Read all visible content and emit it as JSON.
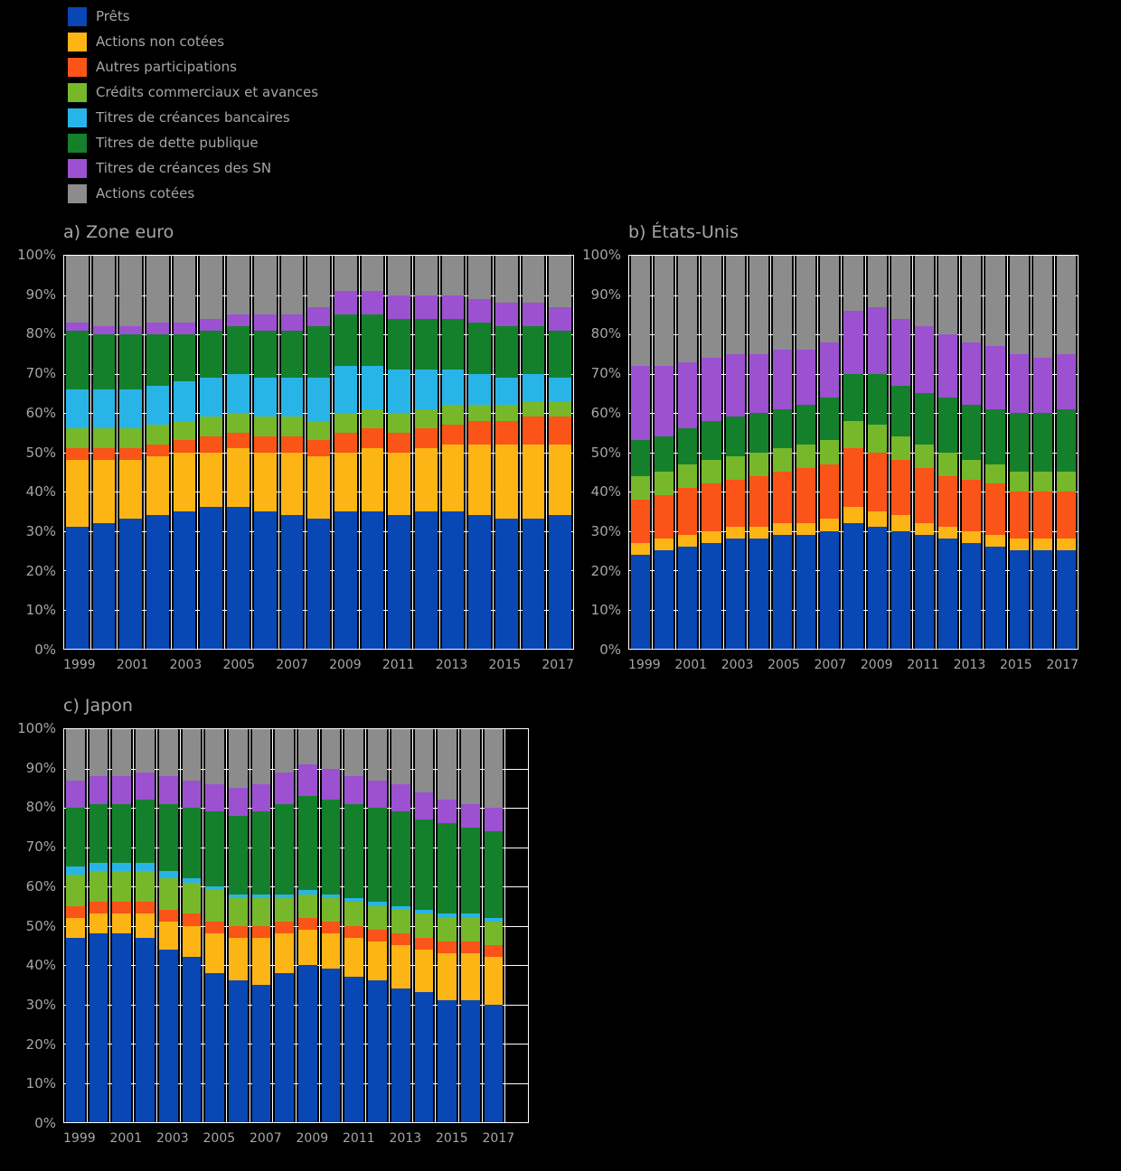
{
  "page": {
    "background": "#000000",
    "text_color": "#a6a6a6",
    "grid_color": "#ffffff"
  },
  "legend": {
    "items": [
      {
        "label": "Prêts",
        "color": "#0847b4"
      },
      {
        "label": "Actions non cotées",
        "color": "#fdb515"
      },
      {
        "label": "Autres participations",
        "color": "#fa5418"
      },
      {
        "label": "Crédits commerciaux et avances",
        "color": "#76b82a"
      },
      {
        "label": "Titres de créances bancaires",
        "color": "#29b4e8"
      },
      {
        "label": "Titres de dette publique",
        "color": "#15802b"
      },
      {
        "label": "Titres de créances des SN",
        "color": "#9b51d0"
      },
      {
        "label": "Actions cotées",
        "color": "#8c8c8c"
      }
    ]
  },
  "chart_data": [
    {
      "type": "bar",
      "stacked": true,
      "percent": true,
      "title": "a) Zone euro",
      "ylim": [
        0,
        100
      ],
      "grid": true,
      "y_ticks": [
        "100%",
        "90%",
        "80%",
        "70%",
        "60%",
        "50%",
        "40%",
        "30%",
        "20%",
        "10%",
        "0%"
      ],
      "categories": [
        "1999",
        "2000",
        "2001",
        "2002",
        "2003",
        "2004",
        "2005",
        "2006",
        "2007",
        "2008",
        "2009",
        "2010",
        "2011",
        "2012",
        "2013",
        "2014",
        "2015",
        "2016",
        "2017"
      ],
      "x_tick_labels": [
        "1999",
        "2001",
        "2003",
        "2005",
        "2007",
        "2009",
        "2011",
        "2013",
        "2015",
        "2017"
      ],
      "trailing_empty_slots": 0,
      "series": [
        {
          "name": "Prêts",
          "color": "#0847b4",
          "values": [
            31,
            32,
            33,
            34,
            35,
            36,
            36,
            35,
            34,
            33,
            35,
            35,
            34,
            35,
            35,
            34,
            33,
            33,
            34
          ]
        },
        {
          "name": "Actions non cotées",
          "color": "#fdb515",
          "values": [
            17,
            16,
            15,
            15,
            15,
            14,
            15,
            15,
            16,
            16,
            15,
            16,
            16,
            16,
            17,
            18,
            19,
            19,
            18
          ]
        },
        {
          "name": "Autres participations",
          "color": "#fa5418",
          "values": [
            3,
            3,
            3,
            3,
            3,
            4,
            4,
            4,
            4,
            4,
            5,
            5,
            5,
            5,
            5,
            6,
            6,
            7,
            7
          ]
        },
        {
          "name": "Crédits commerciaux et avances",
          "color": "#76b82a",
          "values": [
            5,
            5,
            5,
            5,
            5,
            5,
            5,
            5,
            5,
            5,
            5,
            5,
            5,
            5,
            5,
            4,
            4,
            4,
            4
          ]
        },
        {
          "name": "Titres de créances bancaires",
          "color": "#29b4e8",
          "values": [
            10,
            10,
            10,
            10,
            10,
            10,
            10,
            10,
            10,
            11,
            12,
            11,
            11,
            10,
            9,
            8,
            7,
            7,
            6
          ]
        },
        {
          "name": "Titres de dette publique",
          "color": "#15802b",
          "values": [
            15,
            14,
            14,
            13,
            12,
            12,
            12,
            12,
            12,
            13,
            13,
            13,
            13,
            13,
            13,
            13,
            13,
            12,
            12
          ]
        },
        {
          "name": "Titres de créances des SN",
          "color": "#9b51d0",
          "values": [
            2,
            2,
            2,
            3,
            3,
            3,
            3,
            4,
            4,
            5,
            6,
            6,
            6,
            6,
            6,
            6,
            6,
            6,
            6
          ]
        },
        {
          "name": "Actions cotées",
          "color": "#8c8c8c",
          "values": [
            17,
            18,
            18,
            17,
            17,
            16,
            15,
            15,
            15,
            13,
            9,
            9,
            10,
            10,
            10,
            11,
            12,
            12,
            13
          ]
        }
      ]
    },
    {
      "type": "bar",
      "stacked": true,
      "percent": true,
      "title": "b) États-Unis",
      "ylim": [
        0,
        100
      ],
      "grid": true,
      "y_ticks": [
        "100%",
        "90%",
        "80%",
        "70%",
        "60%",
        "50%",
        "40%",
        "30%",
        "20%",
        "10%",
        "0%"
      ],
      "categories": [
        "1999",
        "2000",
        "2001",
        "2002",
        "2003",
        "2004",
        "2005",
        "2006",
        "2007",
        "2008",
        "2009",
        "2010",
        "2011",
        "2012",
        "2013",
        "2014",
        "2015",
        "2016",
        "2017"
      ],
      "x_tick_labels": [
        "1999",
        "2001",
        "2003",
        "2005",
        "2007",
        "2009",
        "2011",
        "2013",
        "2015",
        "2017"
      ],
      "trailing_empty_slots": 0,
      "series": [
        {
          "name": "Prêts",
          "color": "#0847b4",
          "values": [
            24,
            25,
            26,
            27,
            28,
            28,
            29,
            29,
            30,
            32,
            31,
            30,
            29,
            28,
            27,
            26,
            25,
            25,
            25
          ]
        },
        {
          "name": "Actions non cotées",
          "color": "#fdb515",
          "values": [
            3,
            3,
            3,
            3,
            3,
            3,
            3,
            3,
            3,
            4,
            4,
            4,
            3,
            3,
            3,
            3,
            3,
            3,
            3
          ]
        },
        {
          "name": "Autres participations",
          "color": "#fa5418",
          "values": [
            11,
            11,
            12,
            12,
            12,
            13,
            13,
            14,
            14,
            15,
            15,
            14,
            14,
            13,
            13,
            13,
            12,
            12,
            12
          ]
        },
        {
          "name": "Crédits commerciaux et avances",
          "color": "#76b82a",
          "values": [
            6,
            6,
            6,
            6,
            6,
            6,
            6,
            6,
            6,
            7,
            7,
            6,
            6,
            6,
            5,
            5,
            5,
            5,
            5
          ]
        },
        {
          "name": "Titres de créances bancaires",
          "color": "#29b4e8",
          "values": [
            0,
            0,
            0,
            0,
            0,
            0,
            0,
            0,
            0,
            0,
            0,
            0,
            0,
            0,
            0,
            0,
            0,
            0,
            0
          ]
        },
        {
          "name": "Titres de dette publique",
          "color": "#15802b",
          "values": [
            9,
            9,
            9,
            10,
            10,
            10,
            10,
            10,
            11,
            12,
            13,
            13,
            13,
            14,
            14,
            14,
            15,
            15,
            16
          ]
        },
        {
          "name": "Titres de créances des SN",
          "color": "#9b51d0",
          "values": [
            19,
            18,
            17,
            16,
            16,
            15,
            15,
            14,
            14,
            16,
            17,
            17,
            17,
            16,
            16,
            16,
            15,
            14,
            14
          ]
        },
        {
          "name": "Actions cotées",
          "color": "#8c8c8c",
          "values": [
            28,
            28,
            27,
            26,
            25,
            25,
            24,
            24,
            22,
            14,
            13,
            16,
            18,
            20,
            22,
            23,
            25,
            26,
            25
          ]
        }
      ]
    },
    {
      "type": "bar",
      "stacked": true,
      "percent": true,
      "title": "c) Japon",
      "ylim": [
        0,
        100
      ],
      "grid": true,
      "y_ticks": [
        "100%",
        "90%",
        "80%",
        "70%",
        "60%",
        "50%",
        "40%",
        "30%",
        "20%",
        "10%",
        "0%"
      ],
      "categories": [
        "1999",
        "2000",
        "2001",
        "2002",
        "2003",
        "2004",
        "2005",
        "2006",
        "2007",
        "2008",
        "2009",
        "2010",
        "2011",
        "2012",
        "2013",
        "2014",
        "2015",
        "2016",
        "2017"
      ],
      "x_tick_labels": [
        "1999",
        "2001",
        "2003",
        "2005",
        "2007",
        "2009",
        "2011",
        "2013",
        "2015",
        "2017"
      ],
      "trailing_empty_slots": 1,
      "series": [
        {
          "name": "Prêts",
          "color": "#0847b4",
          "values": [
            47,
            48,
            48,
            47,
            44,
            42,
            38,
            36,
            35,
            38,
            40,
            39,
            37,
            36,
            34,
            33,
            31,
            31,
            30
          ]
        },
        {
          "name": "Actions non cotées",
          "color": "#fdb515",
          "values": [
            5,
            5,
            5,
            6,
            7,
            8,
            10,
            11,
            12,
            10,
            9,
            9,
            10,
            10,
            11,
            11,
            12,
            12,
            12
          ]
        },
        {
          "name": "Autres participations",
          "color": "#fa5418",
          "values": [
            3,
            3,
            3,
            3,
            3,
            3,
            3,
            3,
            3,
            3,
            3,
            3,
            3,
            3,
            3,
            3,
            3,
            3,
            3
          ]
        },
        {
          "name": "Crédits commerciaux et avances",
          "color": "#76b82a",
          "values": [
            8,
            8,
            8,
            8,
            8,
            8,
            8,
            7,
            7,
            6,
            6,
            6,
            6,
            6,
            6,
            6,
            6,
            6,
            6
          ]
        },
        {
          "name": "Titres de créances bancaires",
          "color": "#29b4e8",
          "values": [
            2,
            2,
            2,
            2,
            2,
            1,
            1,
            1,
            1,
            1,
            1,
            1,
            1,
            1,
            1,
            1,
            1,
            1,
            1
          ]
        },
        {
          "name": "Titres de dette publique",
          "color": "#15802b",
          "values": [
            15,
            15,
            15,
            16,
            17,
            18,
            19,
            20,
            21,
            23,
            24,
            24,
            24,
            24,
            24,
            23,
            23,
            22,
            22
          ]
        },
        {
          "name": "Titres de créances des SN",
          "color": "#9b51d0",
          "values": [
            7,
            7,
            7,
            7,
            7,
            7,
            7,
            7,
            7,
            8,
            8,
            8,
            7,
            7,
            7,
            7,
            6,
            6,
            6
          ]
        },
        {
          "name": "Actions cotées",
          "color": "#8c8c8c",
          "values": [
            13,
            12,
            12,
            11,
            12,
            13,
            14,
            15,
            14,
            11,
            9,
            10,
            12,
            13,
            14,
            16,
            18,
            19,
            20
          ]
        }
      ]
    }
  ]
}
